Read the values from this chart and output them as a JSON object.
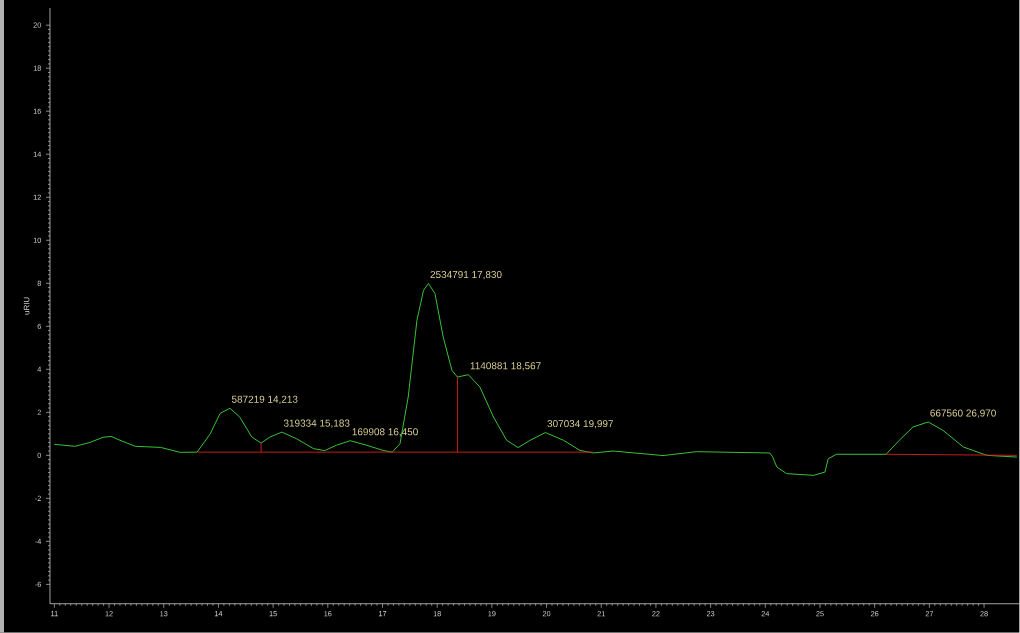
{
  "chart_data": {
    "type": "line",
    "ylabel": "uRIU",
    "x": [
      11.0,
      11.38,
      11.65,
      11.89,
      12.04,
      12.2,
      12.48,
      12.94,
      13.3,
      13.61,
      13.85,
      14.03,
      14.21,
      14.39,
      14.61,
      14.78,
      14.94,
      15.16,
      15.43,
      15.74,
      15.94,
      16.16,
      16.41,
      16.71,
      17.01,
      17.18,
      17.32,
      17.47,
      17.63,
      17.75,
      17.84,
      17.96,
      18.11,
      18.27,
      18.37,
      18.57,
      18.78,
      19.03,
      19.27,
      19.48,
      19.7,
      19.98,
      20.31,
      20.61,
      20.85,
      21.22,
      22.13,
      22.74,
      24.08,
      24.13,
      24.21,
      24.39,
      24.88,
      25.09,
      25.15,
      25.3,
      25.85,
      26.21,
      26.45,
      26.7,
      26.98,
      27.25,
      27.62,
      28.05,
      28.6
    ],
    "series": [
      {
        "color": "#3ccf3c",
        "values": [
          0.51,
          0.42,
          0.6,
          0.84,
          0.88,
          0.7,
          0.42,
          0.37,
          0.14,
          0.15,
          1.0,
          1.95,
          2.19,
          1.78,
          0.85,
          0.57,
          0.85,
          1.08,
          0.77,
          0.31,
          0.22,
          0.47,
          0.68,
          0.47,
          0.23,
          0.15,
          0.54,
          2.71,
          6.28,
          7.67,
          7.99,
          7.52,
          5.5,
          3.95,
          3.64,
          3.75,
          3.18,
          1.78,
          0.7,
          0.36,
          0.7,
          1.06,
          0.7,
          0.23,
          0.11,
          0.2,
          -0.01,
          0.17,
          0.11,
          -0.05,
          -0.54,
          -0.85,
          -0.93,
          -0.78,
          -0.16,
          0.05,
          0.05,
          0.05,
          0.7,
          1.32,
          1.55,
          1.16,
          0.39,
          0.0,
          -0.08
        ]
      },
      {
        "type": "line",
        "color": "#d81e1e",
        "x": [
          13.62,
          20.85
        ],
        "values": [
          0.15,
          0.15
        ]
      },
      {
        "type": "line",
        "color": "#d81e1e",
        "x": [
          26.21,
          28.6
        ],
        "values": [
          0.05,
          0.0
        ]
      },
      {
        "type": "line",
        "color": "#d81e1e",
        "x": [
          14.78,
          14.78
        ],
        "values": [
          0.15,
          0.57
        ]
      },
      {
        "type": "line",
        "color": "#d81e1e",
        "x": [
          18.37,
          18.37
        ],
        "values": [
          0.15,
          3.64
        ]
      }
    ],
    "annotations": [
      {
        "text": "587219  14,213",
        "x": 14.21,
        "y": 2.19
      },
      {
        "text": "319334  15,183",
        "x": 15.16,
        "y": 1.08
      },
      {
        "text": "169908  16,450",
        "x": 16.41,
        "y": 0.68
      },
      {
        "text": "2534791  17,830",
        "x": 17.84,
        "y": 7.99
      },
      {
        "text": "1140881  18,567",
        "x": 18.57,
        "y": 3.75
      },
      {
        "text": "307034  19,997",
        "x": 19.98,
        "y": 1.06
      },
      {
        "text": "667560  26,970",
        "x": 26.98,
        "y": 1.55
      }
    ],
    "xlim": [
      10.92,
      28.65
    ],
    "ylim": [
      -6.9,
      20.8
    ],
    "xticks": [
      11,
      12,
      13,
      14,
      15,
      16,
      17,
      18,
      19,
      20,
      21,
      22,
      23,
      24,
      25,
      26,
      27,
      28
    ],
    "yticks": [
      -6,
      -4,
      -2,
      0,
      2,
      4,
      6,
      8,
      10,
      12,
      14,
      16,
      18,
      20
    ]
  }
}
